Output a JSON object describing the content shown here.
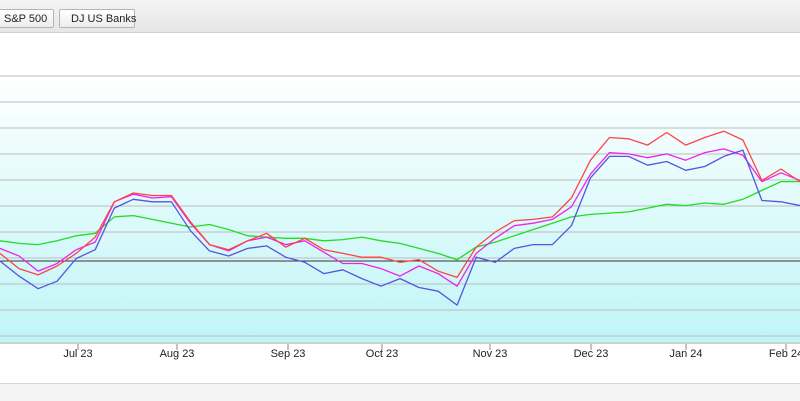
{
  "legend": {
    "items": [
      {
        "label": "S&P 500",
        "color": "#22dd22"
      },
      {
        "label": "DJ US Banks",
        "color": "#ee22ee"
      }
    ]
  },
  "chart_data": {
    "type": "line",
    "title": "",
    "xlabel": "",
    "ylabel": "",
    "grid": true,
    "legend_placement": "top-left",
    "x_ticks": [
      "Jul 23",
      "Aug 23",
      "Sep 23",
      "Oct 23",
      "Nov 23",
      "Dec 23",
      "Jan 24",
      "Feb 24"
    ],
    "series": [
      {
        "name": "S&P 500",
        "color": "#22dd22",
        "values": [
          1.6,
          1.4,
          1.3,
          1.6,
          2.0,
          2.2,
          3.5,
          3.6,
          3.3,
          3.0,
          2.7,
          2.9,
          2.5,
          2.0,
          1.9,
          1.8,
          1.8,
          1.6,
          1.7,
          1.9,
          1.6,
          1.4,
          1.0,
          0.6,
          0.1,
          1.1,
          1.5,
          2.0,
          2.5,
          3.0,
          3.5,
          3.7,
          3.8,
          3.9,
          4.2,
          4.5,
          4.4,
          4.6,
          4.5,
          4.9,
          5.6,
          6.3,
          6.3
        ]
      },
      {
        "name": "DJ US Banks",
        "color": "#ee22ee",
        "values": [
          1.0,
          0.4,
          -0.8,
          -0.2,
          0.9,
          1.5,
          4.7,
          5.3,
          5.0,
          5.1,
          3.0,
          1.3,
          0.8,
          1.6,
          1.9,
          1.3,
          1.6,
          0.7,
          -0.2,
          -0.2,
          -0.6,
          -1.2,
          -0.4,
          -1.0,
          -2.0,
          0.6,
          1.8,
          2.8,
          3.0,
          3.3,
          4.3,
          6.9,
          8.6,
          8.5,
          8.2,
          8.5,
          8.0,
          8.6,
          8.9,
          8.4,
          6.3,
          7.0,
          6.4
        ]
      },
      {
        "name": "",
        "color": "#ff4444",
        "values": [
          0.6,
          -0.6,
          -1.1,
          -0.4,
          0.6,
          1.9,
          4.7,
          5.4,
          5.2,
          5.2,
          3.1,
          1.3,
          0.9,
          1.6,
          2.2,
          1.1,
          1.8,
          0.9,
          0.6,
          0.3,
          0.3,
          -0.1,
          0.1,
          -0.8,
          -1.3,
          1.1,
          2.3,
          3.2,
          3.3,
          3.5,
          5.0,
          8.0,
          9.8,
          9.7,
          9.2,
          10.2,
          9.2,
          9.8,
          10.3,
          9.6,
          6.4,
          7.3,
          6.3
        ]
      },
      {
        "name": "",
        "color": "#5555dd",
        "values": [
          0.0,
          -1.2,
          -2.2,
          -1.6,
          0.2,
          0.9,
          4.2,
          4.9,
          4.7,
          4.7,
          2.4,
          0.8,
          0.4,
          1.0,
          1.2,
          0.3,
          -0.1,
          -1.0,
          -0.7,
          -1.4,
          -2.0,
          -1.4,
          -2.1,
          -2.4,
          -3.5,
          0.3,
          -0.1,
          1.0,
          1.3,
          1.3,
          2.8,
          6.6,
          8.3,
          8.3,
          7.6,
          7.9,
          7.2,
          7.5,
          8.3,
          8.8,
          4.8,
          4.7,
          4.4
        ]
      }
    ]
  }
}
